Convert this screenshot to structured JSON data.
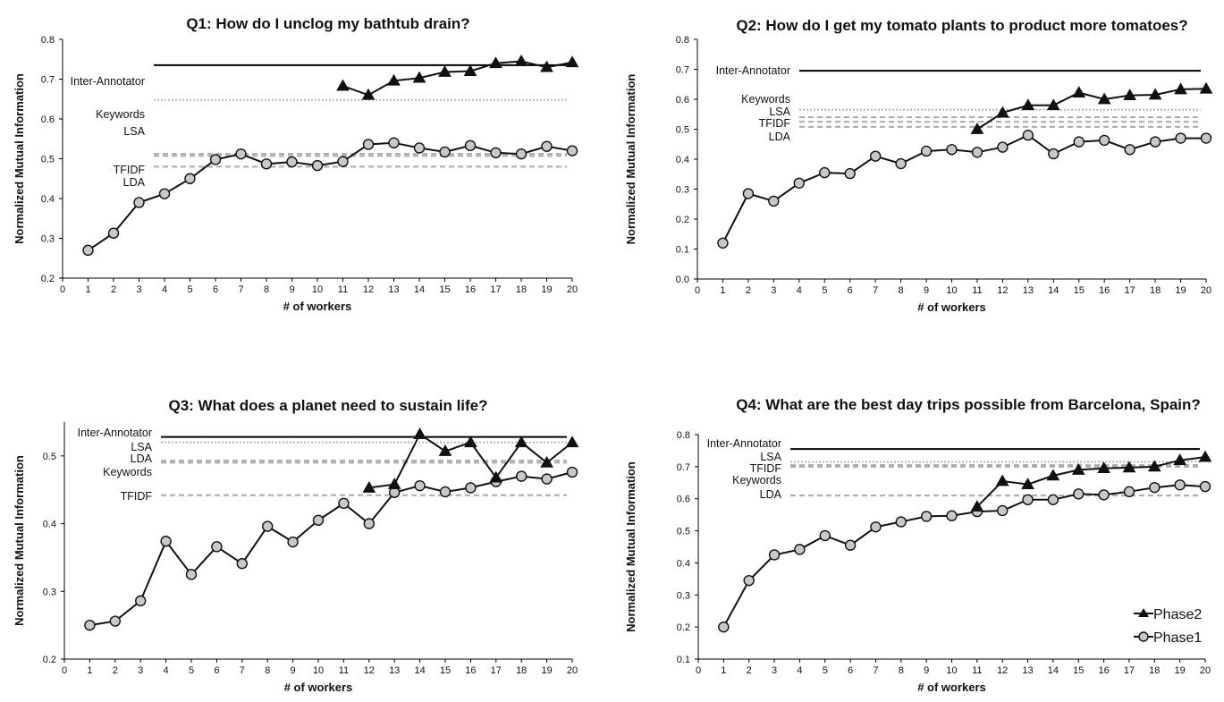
{
  "chart_data": [
    {
      "type": "line",
      "title": "Q1: How do I unclog my bathtub drain?",
      "xlabel": "# of workers",
      "ylabel": "Normalized Mutual Information",
      "xlim": [
        0,
        20
      ],
      "ylim": [
        0.2,
        0.8
      ],
      "y_ticks": [
        "0.2",
        "0.3",
        "0.4",
        "0.5",
        "0.6",
        "0.7",
        "0.8"
      ],
      "grid": false,
      "reference_lines": [
        {
          "name": "Inter-Annotator",
          "value": 0.735,
          "style": "solid"
        },
        {
          "name": "Keywords",
          "value": 0.648,
          "style": "dotted"
        },
        {
          "name": "LSA",
          "value": 0.512,
          "style": "dashed"
        },
        {
          "name": "TFIDF",
          "value": 0.507,
          "style": "dashed"
        },
        {
          "name": "LDA",
          "value": 0.48,
          "style": "dashed"
        }
      ],
      "series": [
        {
          "name": "Phase1",
          "marker": "circle",
          "x": [
            1,
            2,
            3,
            4,
            5,
            6,
            7,
            8,
            9,
            10,
            11,
            12,
            13,
            14,
            15,
            16,
            17,
            18,
            19,
            20
          ],
          "y": [
            0.27,
            0.313,
            0.39,
            0.412,
            0.45,
            0.498,
            0.512,
            0.487,
            0.492,
            0.483,
            0.493,
            0.536,
            0.54,
            0.527,
            0.517,
            0.533,
            0.515,
            0.512,
            0.531,
            0.52
          ]
        },
        {
          "name": "Phase2",
          "marker": "triangle",
          "x": [
            11,
            12,
            13,
            14,
            15,
            16,
            17,
            18,
            19,
            20
          ],
          "y": [
            0.683,
            0.66,
            0.696,
            0.703,
            0.718,
            0.72,
            0.74,
            0.745,
            0.73,
            0.742
          ]
        }
      ]
    },
    {
      "type": "line",
      "title": "Q2: How do I get my tomato plants to product more tomatoes?",
      "xlabel": "# of workers",
      "ylabel": "Normalized Mutual Information",
      "xlim": [
        0,
        20
      ],
      "ylim": [
        0.0,
        0.8
      ],
      "y_ticks": [
        "0.0",
        "0.1",
        "0.2",
        "0.3",
        "0.4",
        "0.5",
        "0.6",
        "0.7",
        "0.8"
      ],
      "grid": false,
      "reference_lines": [
        {
          "name": "Inter-Annotator",
          "value": 0.695,
          "style": "solid"
        },
        {
          "name": "Keywords",
          "value": 0.565,
          "style": "dotted"
        },
        {
          "name": "LSA",
          "value": 0.54,
          "style": "dashed"
        },
        {
          "name": "TFIDF",
          "value": 0.525,
          "style": "dashed"
        },
        {
          "name": "LDA",
          "value": 0.508,
          "style": "dashed"
        }
      ],
      "series": [
        {
          "name": "Phase1",
          "marker": "circle",
          "x": [
            1,
            2,
            3,
            4,
            5,
            6,
            7,
            8,
            9,
            10,
            11,
            12,
            13,
            14,
            15,
            16,
            17,
            18,
            19,
            20
          ],
          "y": [
            0.12,
            0.285,
            0.26,
            0.32,
            0.355,
            0.352,
            0.41,
            0.385,
            0.427,
            0.432,
            0.423,
            0.44,
            0.48,
            0.418,
            0.458,
            0.463,
            0.432,
            0.458,
            0.47,
            0.47
          ]
        },
        {
          "name": "Phase2",
          "marker": "triangle",
          "x": [
            11,
            12,
            13,
            14,
            15,
            16,
            17,
            18,
            19,
            20
          ],
          "y": [
            0.5,
            0.555,
            0.58,
            0.58,
            0.622,
            0.6,
            0.613,
            0.615,
            0.633,
            0.635
          ]
        }
      ]
    },
    {
      "type": "line",
      "title": "Q3: What does a planet need to sustain life?",
      "xlabel": "# of workers",
      "ylabel": "Normalized Mutual Information",
      "xlim": [
        0,
        20
      ],
      "ylim": [
        0.2,
        0.55
      ],
      "y_ticks": [
        "0.2",
        "0.3",
        "0.4",
        "0.5"
      ],
      "grid": false,
      "reference_lines": [
        {
          "name": "Inter-Annotator",
          "value": 0.528,
          "style": "solid"
        },
        {
          "name": "LSA",
          "value": 0.52,
          "style": "dotted"
        },
        {
          "name": "LDA",
          "value": 0.493,
          "style": "dashed"
        },
        {
          "name": "Keywords",
          "value": 0.49,
          "style": "dashed"
        },
        {
          "name": "TFIDF",
          "value": 0.442,
          "style": "dashed"
        }
      ],
      "series": [
        {
          "name": "Phase1",
          "marker": "circle",
          "x": [
            1,
            2,
            3,
            4,
            5,
            6,
            7,
            8,
            9,
            10,
            11,
            12,
            13,
            14,
            15,
            16,
            17,
            18,
            19,
            20
          ],
          "y": [
            0.25,
            0.256,
            0.286,
            0.374,
            0.325,
            0.366,
            0.341,
            0.396,
            0.373,
            0.405,
            0.43,
            0.4,
            0.446,
            0.456,
            0.447,
            0.453,
            0.462,
            0.47,
            0.466,
            0.476
          ]
        },
        {
          "name": "Phase2",
          "marker": "triangle",
          "x": [
            12,
            13,
            14,
            15,
            16,
            17,
            18,
            19,
            20
          ],
          "y": [
            0.453,
            0.458,
            0.532,
            0.507,
            0.52,
            0.468,
            0.52,
            0.49,
            0.52
          ]
        }
      ]
    },
    {
      "type": "line",
      "title": "Q4: What are the best day trips possible from Barcelona, Spain?",
      "xlabel": "# of workers",
      "ylabel": "Normalized Mutual Information",
      "xlim": [
        0,
        20
      ],
      "ylim": [
        0.1,
        0.8
      ],
      "y_ticks": [
        "0.1",
        "0.2",
        "0.3",
        "0.4",
        "0.5",
        "0.6",
        "0.7",
        "0.8"
      ],
      "grid": false,
      "legend": {
        "placement": "bottom-right",
        "entries": [
          "Phase2",
          "Phase1"
        ]
      },
      "reference_lines": [
        {
          "name": "Inter-Annotator",
          "value": 0.755,
          "style": "solid"
        },
        {
          "name": "LSA",
          "value": 0.715,
          "style": "dotted"
        },
        {
          "name": "TFIDF",
          "value": 0.705,
          "style": "dashed"
        },
        {
          "name": "Keywords",
          "value": 0.7,
          "style": "dashed"
        },
        {
          "name": "LDA",
          "value": 0.61,
          "style": "dashed"
        }
      ],
      "series": [
        {
          "name": "Phase1",
          "marker": "circle",
          "x": [
            1,
            2,
            3,
            4,
            5,
            6,
            7,
            8,
            9,
            10,
            11,
            12,
            13,
            14,
            15,
            16,
            17,
            18,
            19,
            20
          ],
          "y": [
            0.2,
            0.345,
            0.425,
            0.442,
            0.485,
            0.455,
            0.512,
            0.528,
            0.545,
            0.547,
            0.56,
            0.563,
            0.597,
            0.597,
            0.615,
            0.612,
            0.622,
            0.635,
            0.643,
            0.638
          ]
        },
        {
          "name": "Phase2",
          "marker": "triangle",
          "x": [
            11,
            12,
            13,
            14,
            15,
            16,
            17,
            18,
            19,
            20
          ],
          "y": [
            0.575,
            0.655,
            0.645,
            0.672,
            0.69,
            0.695,
            0.697,
            0.7,
            0.72,
            0.73
          ]
        }
      ]
    }
  ]
}
